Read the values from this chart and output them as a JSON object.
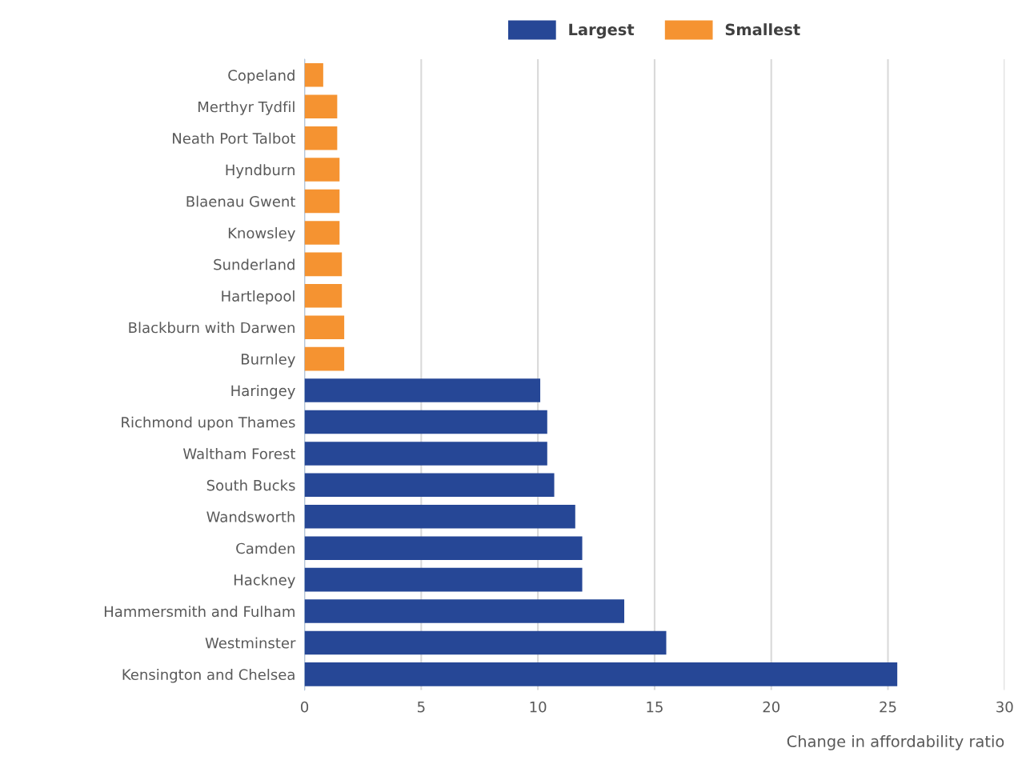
{
  "chart_data": {
    "type": "bar",
    "orientation": "horizontal",
    "xlabel": "Change in affordability ratio",
    "categories": [
      "Copeland",
      "Merthyr Tydfil",
      "Neath Port Talbot",
      "Hyndburn",
      "Blaenau Gwent",
      "Knowsley",
      "Sunderland",
      "Hartlepool",
      "Blackburn with Darwen",
      "Burnley",
      "Haringey",
      "Richmond upon Thames",
      "Waltham Forest",
      "South Bucks",
      "Wandsworth",
      "Camden",
      "Hackney",
      "Hammersmith and Fulham",
      "Westminster",
      "Kensington and Chelsea"
    ],
    "series": [
      {
        "name": "Largest",
        "color": "#264796",
        "values": [
          null,
          null,
          null,
          null,
          null,
          null,
          null,
          null,
          null,
          null,
          10.1,
          10.4,
          10.4,
          10.7,
          11.6,
          11.9,
          11.9,
          13.7,
          15.5,
          25.4
        ]
      },
      {
        "name": "Smallest",
        "color": "#f59331",
        "values": [
          0.8,
          1.4,
          1.4,
          1.5,
          1.5,
          1.5,
          1.6,
          1.6,
          1.7,
          1.7,
          null,
          null,
          null,
          null,
          null,
          null,
          null,
          null,
          null,
          null
        ]
      }
    ],
    "xlim": [
      0,
      30
    ],
    "xticks": [
      0,
      5,
      10,
      15,
      20,
      25,
      30
    ],
    "grid": "x",
    "legend": "top"
  }
}
